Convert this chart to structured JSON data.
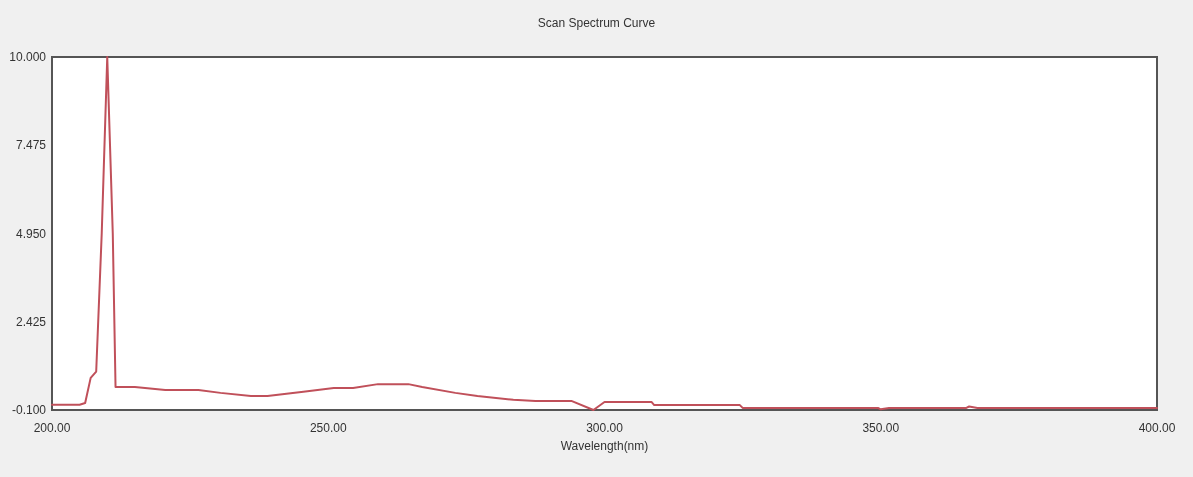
{
  "chart_data": {
    "type": "line",
    "title": "Scan Spectrum Curve",
    "xlabel": "Wavelength(nm)",
    "x": [
      200,
      205,
      206,
      207,
      208,
      209,
      210,
      211,
      211.5,
      215,
      220.5,
      226.5,
      230.5,
      236,
      239,
      245.5,
      251,
      254.5,
      259,
      264.5,
      267,
      273,
      277,
      283.5,
      287.5,
      294,
      298,
      300,
      308.5,
      309,
      324.5,
      325,
      349.5,
      350,
      351.5,
      365.5,
      366,
      367.5,
      400
    ],
    "series": [
      {
        "color": "#c0505a",
        "values": [
          0.05,
          0.05,
          0.1,
          0.82,
          1.0,
          4.95,
          10.0,
          4.95,
          0.56,
          0.56,
          0.47,
          0.47,
          0.39,
          0.3,
          0.3,
          0.42,
          0.53,
          0.53,
          0.64,
          0.64,
          0.56,
          0.39,
          0.3,
          0.19,
          0.16,
          0.16,
          -0.1,
          0.13,
          0.13,
          0.04,
          0.04,
          -0.04,
          -0.04,
          -0.08,
          -0.04,
          -0.04,
          0.0,
          -0.04,
          -0.04
        ]
      }
    ],
    "xlim": [
      200,
      400
    ],
    "xticks": [
      {
        "value": 200,
        "label": "200.00"
      },
      {
        "value": 250,
        "label": "250.00"
      },
      {
        "value": 300,
        "label": "300.00"
      },
      {
        "value": 350,
        "label": "350.00"
      },
      {
        "value": 400,
        "label": "400.00"
      }
    ],
    "ylim": [
      -0.1,
      10
    ],
    "yticks": [
      {
        "value": -0.1,
        "label": "-0.100"
      },
      {
        "value": 2.425,
        "label": "2.425"
      },
      {
        "value": 4.95,
        "label": "4.950"
      },
      {
        "value": 7.475,
        "label": "7.475"
      },
      {
        "value": 10,
        "label": "10.000"
      }
    ],
    "grid": false,
    "marker": "none",
    "line_style": "solid"
  }
}
